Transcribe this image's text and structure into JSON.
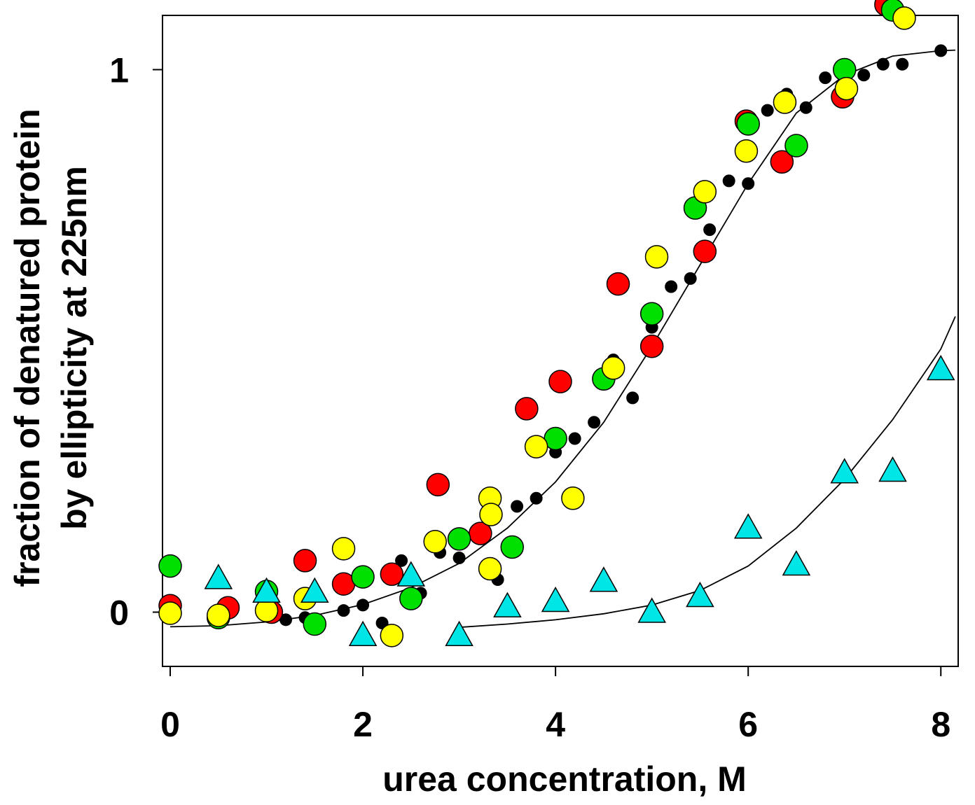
{
  "chart_data": {
    "type": "scatter",
    "title": "",
    "xlabel": "urea concentration, M",
    "ylabel_line1": "fraction of denatured protein",
    "ylabel_line2": "by ellipticity at 225nm",
    "xlim": [
      -0.08,
      8.18
    ],
    "ylim": [
      -0.1,
      1.1
    ],
    "xticks": [
      0,
      2,
      4,
      6,
      8
    ],
    "xtick_labels": [
      "0",
      "2",
      "4",
      "6",
      "8"
    ],
    "yticks": [
      0,
      1
    ],
    "ytick_labels": [
      "0",
      "1"
    ],
    "grid": false,
    "legend": null,
    "colors": {
      "black": "#000000",
      "red": "#ff0000",
      "green": "#00e000",
      "yellow": "#ffff00",
      "cyan": "#00e5e5"
    },
    "series": [
      {
        "name": "black-dots",
        "marker": "small-dot",
        "color": "#000000",
        "points": [
          [
            1.2,
            -0.014
          ],
          [
            1.4,
            -0.01
          ],
          [
            1.8,
            0.003
          ],
          [
            2.0,
            0.013
          ],
          [
            2.2,
            -0.02
          ],
          [
            2.4,
            0.095
          ],
          [
            2.6,
            0.035
          ],
          [
            2.8,
            0.11
          ],
          [
            3.0,
            0.1
          ],
          [
            3.4,
            0.06
          ],
          [
            3.6,
            0.195
          ],
          [
            3.8,
            0.21
          ],
          [
            4.0,
            0.295
          ],
          [
            4.2,
            0.32
          ],
          [
            4.4,
            0.35
          ],
          [
            4.6,
            0.465
          ],
          [
            4.8,
            0.395
          ],
          [
            5.0,
            0.525
          ],
          [
            5.2,
            0.6
          ],
          [
            5.4,
            0.615
          ],
          [
            5.6,
            0.705
          ],
          [
            5.8,
            0.795
          ],
          [
            6.0,
            0.79
          ],
          [
            6.2,
            0.925
          ],
          [
            6.4,
            0.955
          ],
          [
            6.6,
            0.93
          ],
          [
            6.8,
            0.985
          ],
          [
            7.0,
            0.99
          ],
          [
            7.2,
            0.99
          ],
          [
            7.4,
            1.01
          ],
          [
            7.6,
            1.01
          ],
          [
            8.0,
            1.035
          ]
        ]
      },
      {
        "name": "red-circles",
        "marker": "circle",
        "color": "#ff0000",
        "points": [
          [
            0.0,
            0.012
          ],
          [
            0.6,
            0.008
          ],
          [
            1.05,
            0.0
          ],
          [
            1.4,
            0.095
          ],
          [
            1.8,
            0.052
          ],
          [
            2.3,
            0.07
          ],
          [
            2.78,
            0.235
          ],
          [
            3.22,
            0.145
          ],
          [
            3.7,
            0.375
          ],
          [
            4.05,
            0.425
          ],
          [
            4.65,
            0.605
          ],
          [
            5.0,
            0.49
          ],
          [
            5.55,
            0.665
          ],
          [
            5.98,
            0.905
          ],
          [
            6.35,
            0.83
          ],
          [
            6.98,
            0.95
          ],
          [
            7.43,
            1.12
          ]
        ]
      },
      {
        "name": "green-circles",
        "marker": "circle",
        "color": "#00e000",
        "points": [
          [
            0.0,
            0.085
          ],
          [
            0.5,
            -0.01
          ],
          [
            1.0,
            0.038
          ],
          [
            1.5,
            -0.022
          ],
          [
            2.0,
            0.065
          ],
          [
            2.5,
            0.025
          ],
          [
            3.0,
            0.135
          ],
          [
            3.55,
            0.12
          ],
          [
            4.0,
            0.32
          ],
          [
            4.5,
            0.43
          ],
          [
            5.0,
            0.55
          ],
          [
            5.45,
            0.745
          ],
          [
            6.0,
            0.9
          ],
          [
            6.5,
            0.86
          ],
          [
            7.0,
            1.0
          ],
          [
            7.5,
            1.11
          ]
        ]
      },
      {
        "name": "yellow-circles",
        "marker": "circle",
        "color": "#ffff00",
        "points": [
          [
            0.0,
            -0.002
          ],
          [
            0.5,
            -0.006
          ],
          [
            1.0,
            0.003
          ],
          [
            1.4,
            0.025
          ],
          [
            1.8,
            0.117
          ],
          [
            2.3,
            -0.043
          ],
          [
            2.75,
            0.13
          ],
          [
            3.32,
            0.21
          ],
          [
            3.33,
            0.18
          ],
          [
            3.32,
            0.08
          ],
          [
            3.8,
            0.305
          ],
          [
            4.18,
            0.21
          ],
          [
            4.6,
            0.45
          ],
          [
            5.05,
            0.655
          ],
          [
            5.55,
            0.775
          ],
          [
            5.98,
            0.85
          ],
          [
            6.38,
            0.94
          ],
          [
            7.02,
            0.965
          ],
          [
            7.62,
            1.095
          ]
        ]
      },
      {
        "name": "cyan-triangles",
        "marker": "triangle",
        "color": "#00e5e5",
        "points": [
          [
            0.5,
            0.06
          ],
          [
            1.0,
            0.035
          ],
          [
            1.5,
            0.035
          ],
          [
            2.0,
            -0.045
          ],
          [
            2.5,
            0.065
          ],
          [
            3.0,
            -0.045
          ],
          [
            3.5,
            0.008
          ],
          [
            4.0,
            0.018
          ],
          [
            4.5,
            0.055
          ],
          [
            5.0,
            -0.002
          ],
          [
            5.5,
            0.027
          ],
          [
            6.0,
            0.153
          ],
          [
            6.5,
            0.085
          ],
          [
            7.0,
            0.255
          ],
          [
            7.5,
            0.258
          ],
          [
            8.0,
            0.445
          ]
        ]
      }
    ],
    "fit_curves": [
      {
        "name": "fit-curve-main",
        "color": "#000000",
        "points": [
          [
            0,
            -0.027
          ],
          [
            0.5,
            -0.025
          ],
          [
            1.0,
            -0.018
          ],
          [
            1.5,
            -0.006
          ],
          [
            2.0,
            0.014
          ],
          [
            2.5,
            0.045
          ],
          [
            3.0,
            0.09
          ],
          [
            3.5,
            0.155
          ],
          [
            4.0,
            0.24
          ],
          [
            4.5,
            0.35
          ],
          [
            5.0,
            0.49
          ],
          [
            5.5,
            0.64
          ],
          [
            6.0,
            0.79
          ],
          [
            6.5,
            0.92
          ],
          [
            7.0,
            0.99
          ],
          [
            7.5,
            1.025
          ],
          [
            8.0,
            1.035
          ],
          [
            8.15,
            1.036
          ]
        ]
      },
      {
        "name": "fit-curve-triangles",
        "color": "#000000",
        "points": [
          [
            3.0,
            -0.028
          ],
          [
            3.5,
            -0.022
          ],
          [
            4.0,
            -0.014
          ],
          [
            4.5,
            -0.003
          ],
          [
            5.0,
            0.013
          ],
          [
            5.5,
            0.04
          ],
          [
            6.0,
            0.085
          ],
          [
            6.5,
            0.155
          ],
          [
            7.0,
            0.245
          ],
          [
            7.5,
            0.355
          ],
          [
            8.0,
            0.485
          ],
          [
            8.15,
            0.545
          ]
        ]
      }
    ]
  }
}
